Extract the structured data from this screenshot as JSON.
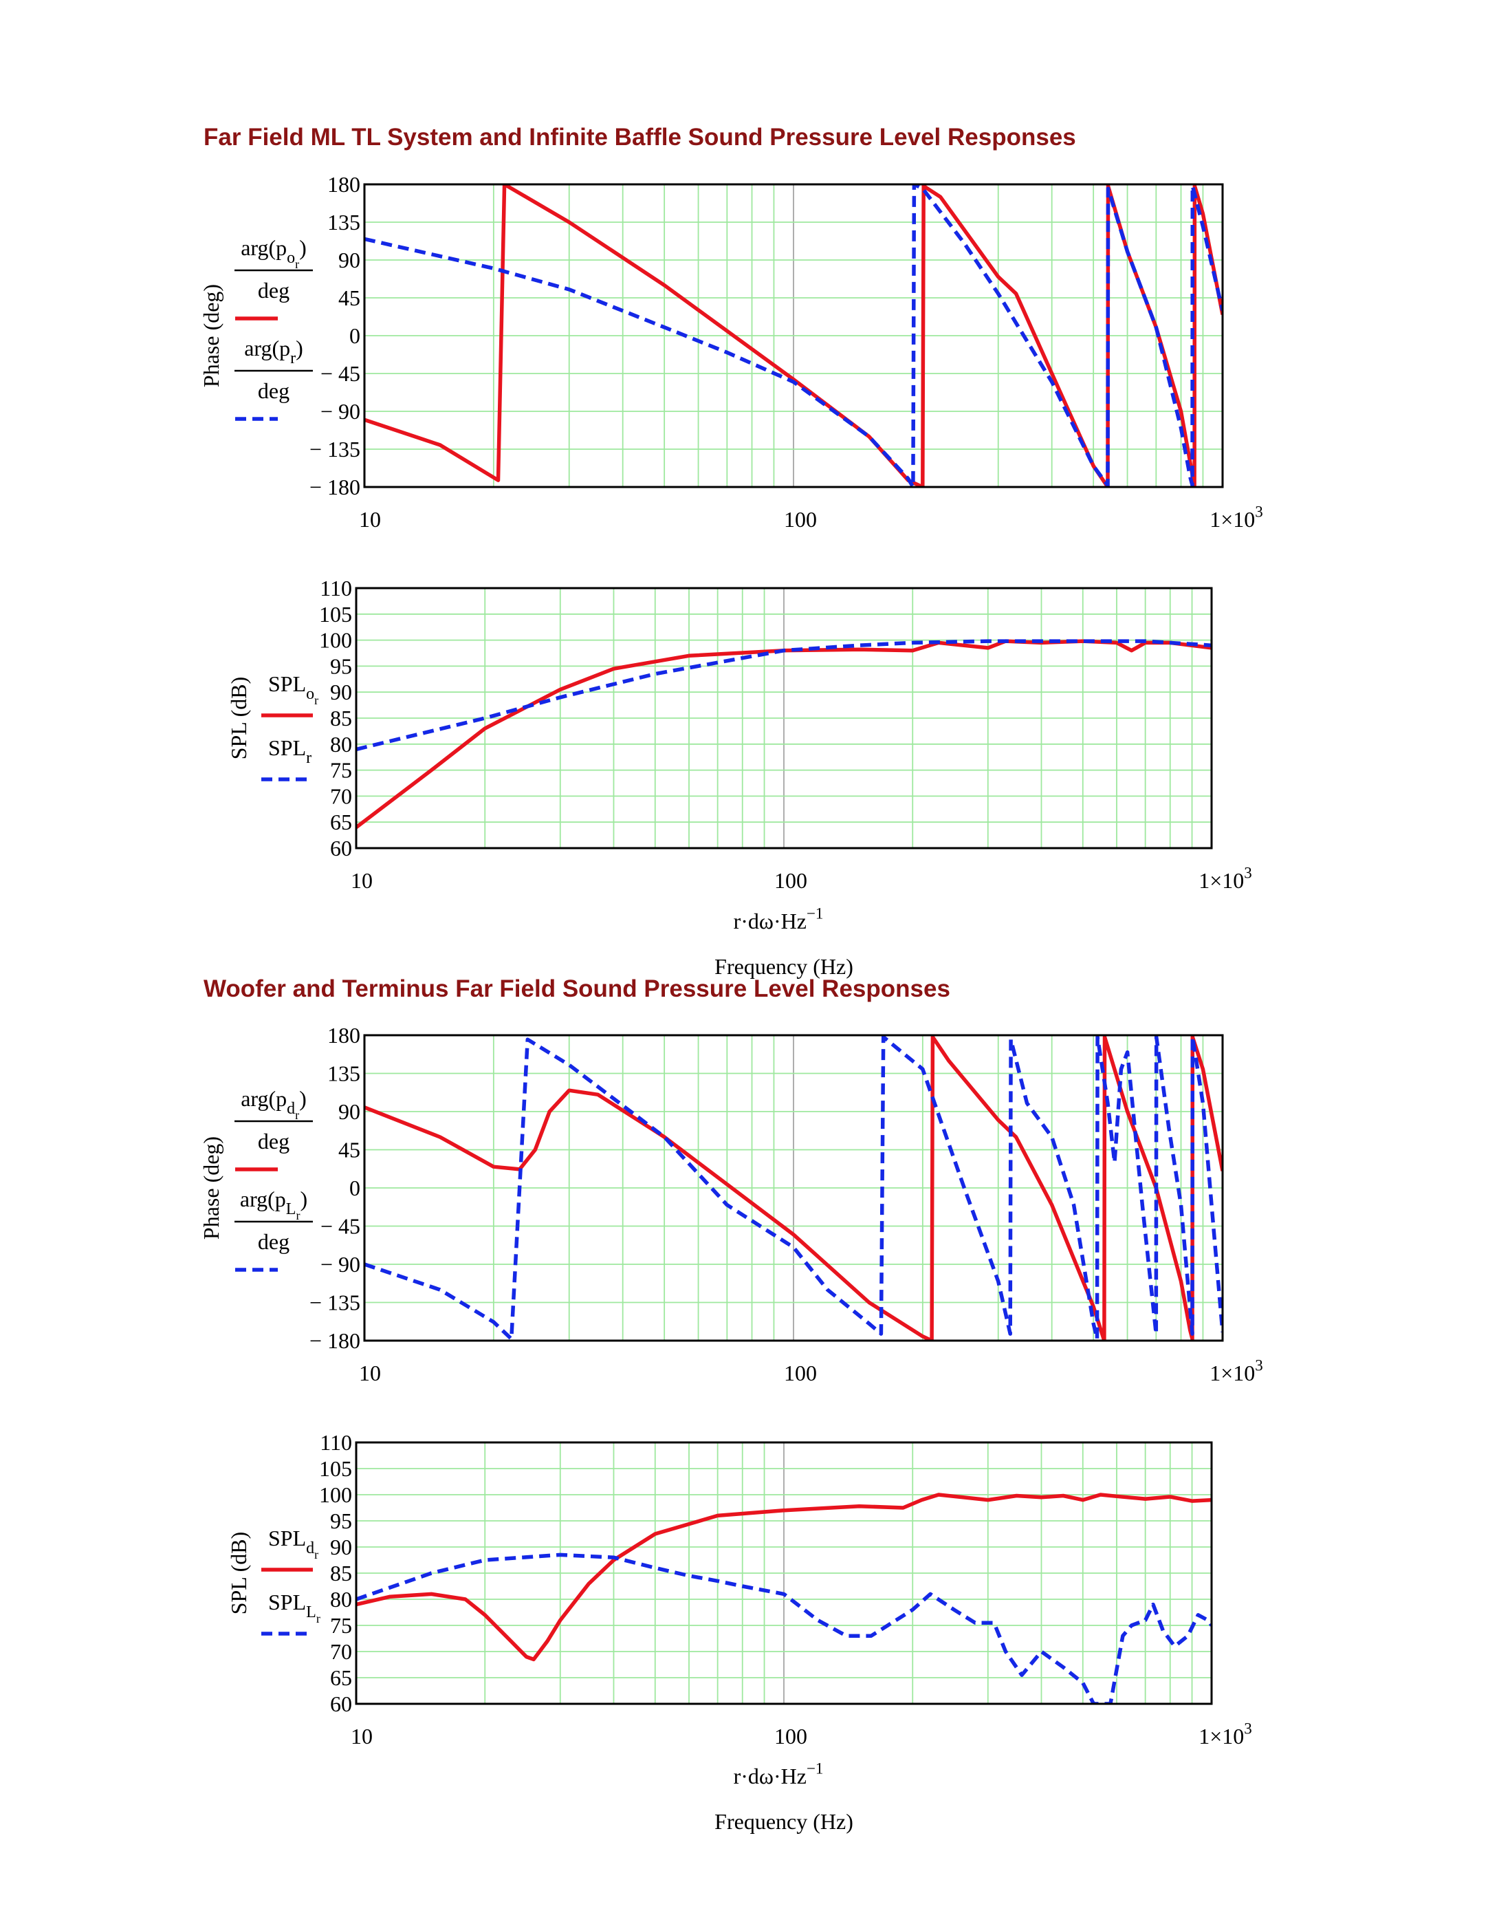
{
  "sections": [
    {
      "title": "Far Field ML TL System and Infinite Baffle Sound Pressure Level Responses"
    },
    {
      "title": "Woofer and Terminus Far Field Sound Pressure Level Responses"
    }
  ],
  "colors": {
    "title": "#8b1414",
    "red_series": "#e8141e",
    "blue_series": "#1428e6",
    "grid": "#9ee89e"
  },
  "chart_data": [
    {
      "type": "line",
      "xscale": "log",
      "xlim": [
        10,
        1000
      ],
      "xticks": [
        "10",
        "100",
        "1×10^3"
      ],
      "ylim": [
        -180,
        180
      ],
      "yticks": [
        "180",
        "135",
        "90",
        "45",
        "0",
        "− 45",
        "− 90",
        "− 135",
        "− 180"
      ],
      "ylabel": "Phase (deg)",
      "xlabel": "",
      "legend": [
        {
          "numerator": "arg(p_o_r)",
          "denominator": "deg",
          "style": "solid"
        },
        {
          "numerator": "arg(p_r)",
          "denominator": "deg",
          "style": "dashed"
        }
      ],
      "series": [
        {
          "color": "red",
          "style": "solid",
          "points": [
            [
              10,
              -100
            ],
            [
              15,
              -130
            ],
            [
              20.5,
              -172
            ],
            [
              21.2,
              180
            ],
            [
              30,
              135
            ],
            [
              50,
              60
            ],
            [
              100,
              -52
            ],
            [
              150,
              -120
            ],
            [
              185,
              -172
            ],
            [
              200,
              -180
            ],
            [
              201,
              178
            ],
            [
              220,
              165
            ],
            [
              300,
              70
            ],
            [
              330,
              50
            ],
            [
              400,
              -45
            ],
            [
              500,
              -155
            ],
            [
              540,
              -180
            ],
            [
              541,
              178
            ],
            [
              600,
              100
            ],
            [
              700,
              10
            ],
            [
              800,
              -90
            ],
            [
              850,
              -165
            ],
            [
              860,
              -178
            ],
            [
              861,
              178
            ],
            [
              900,
              145
            ],
            [
              1000,
              25
            ]
          ]
        },
        {
          "color": "blue",
          "style": "dashed",
          "points": [
            [
              10,
              115
            ],
            [
              20,
              80
            ],
            [
              30,
              55
            ],
            [
              50,
              10
            ],
            [
              70,
              -20
            ],
            [
              100,
              -55
            ],
            [
              150,
              -120
            ],
            [
              185,
              -170
            ],
            [
              190,
              -180
            ],
            [
              191,
              180
            ],
            [
              200,
              175
            ],
            [
              250,
              110
            ],
            [
              300,
              50
            ],
            [
              400,
              -55
            ],
            [
              500,
              -155
            ],
            [
              540,
              -178
            ],
            [
              541,
              175
            ],
            [
              600,
              100
            ],
            [
              700,
              10
            ],
            [
              800,
              -110
            ],
            [
              840,
              -168
            ],
            [
              850,
              -178
            ],
            [
              851,
              178
            ],
            [
              900,
              130
            ],
            [
              1000,
              30
            ]
          ]
        }
      ]
    },
    {
      "type": "line",
      "xscale": "log",
      "xlim": [
        10,
        1000
      ],
      "xticks": [
        "10",
        "100",
        "1×10^3"
      ],
      "ylim": [
        60,
        110
      ],
      "yticks": [
        "110",
        "105",
        "100",
        "95",
        "90",
        "85",
        "80",
        "75",
        "70",
        "65",
        "60"
      ],
      "ylabel": "SPL (dB)",
      "xlabel": "Frequency (Hz)",
      "x_expression": "r·dω·Hz^−1",
      "legend": [
        {
          "label": "SPL_o_r",
          "style": "solid"
        },
        {
          "label": "SPL_r",
          "style": "dashed"
        }
      ],
      "series": [
        {
          "color": "red",
          "style": "solid",
          "points": [
            [
              10,
              64
            ],
            [
              15,
              75
            ],
            [
              20,
              83
            ],
            [
              30,
              90.5
            ],
            [
              40,
              94.5
            ],
            [
              60,
              97
            ],
            [
              100,
              98
            ],
            [
              150,
              98.2
            ],
            [
              200,
              98
            ],
            [
              230,
              99.5
            ],
            [
              300,
              98.5
            ],
            [
              330,
              99.8
            ],
            [
              400,
              99.5
            ],
            [
              500,
              99.8
            ],
            [
              600,
              99.5
            ],
            [
              650,
              98
            ],
            [
              700,
              99.5
            ],
            [
              800,
              99.5
            ],
            [
              1000,
              98.5
            ]
          ]
        },
        {
          "color": "blue",
          "style": "dashed",
          "points": [
            [
              10,
              79
            ],
            [
              20,
              85
            ],
            [
              30,
              89
            ],
            [
              50,
              93.5
            ],
            [
              100,
              98
            ],
            [
              150,
              99
            ],
            [
              200,
              99.5
            ],
            [
              300,
              99.8
            ],
            [
              500,
              99.8
            ],
            [
              700,
              99.8
            ],
            [
              1000,
              99
            ]
          ]
        }
      ]
    },
    {
      "type": "line",
      "xscale": "log",
      "xlim": [
        10,
        1000
      ],
      "xticks": [
        "10",
        "100",
        "1×10^3"
      ],
      "ylim": [
        -180,
        180
      ],
      "yticks": [
        "180",
        "135",
        "90",
        "45",
        "0",
        "− 45",
        "− 90",
        "− 135",
        "− 180"
      ],
      "ylabel": "Phase (deg)",
      "xlabel": "",
      "legend": [
        {
          "numerator": "arg(p_d_r)",
          "denominator": "deg",
          "style": "solid"
        },
        {
          "numerator": "arg(p_L_r)",
          "denominator": "deg",
          "style": "dashed"
        }
      ],
      "series": [
        {
          "color": "red",
          "style": "solid",
          "points": [
            [
              10,
              95
            ],
            [
              15,
              60
            ],
            [
              20,
              25
            ],
            [
              23,
              22
            ],
            [
              25,
              45
            ],
            [
              27,
              90
            ],
            [
              30,
              115
            ],
            [
              35,
              110
            ],
            [
              50,
              60
            ],
            [
              100,
              -55
            ],
            [
              150,
              -135
            ],
            [
              200,
              -175
            ],
            [
              210,
              -180
            ],
            [
              211,
              178
            ],
            [
              230,
              150
            ],
            [
              300,
              80
            ],
            [
              330,
              60
            ],
            [
              400,
              -20
            ],
            [
              500,
              -140
            ],
            [
              530,
              -180
            ],
            [
              531,
              178
            ],
            [
              600,
              90
            ],
            [
              700,
              0
            ],
            [
              800,
              -110
            ],
            [
              840,
              -168
            ],
            [
              850,
              -178
            ],
            [
              851,
              178
            ],
            [
              900,
              140
            ],
            [
              1000,
              20
            ]
          ]
        },
        {
          "color": "blue",
          "style": "dashed",
          "points": [
            [
              10,
              -90
            ],
            [
              15,
              -120
            ],
            [
              20,
              -158
            ],
            [
              22,
              -178
            ],
            [
              24,
              175
            ],
            [
              30,
              145
            ],
            [
              50,
              60
            ],
            [
              70,
              -20
            ],
            [
              100,
              -70
            ],
            [
              120,
              -120
            ],
            [
              150,
              -160
            ],
            [
              160,
              -172
            ],
            [
              162,
              178
            ],
            [
              200,
              140
            ],
            [
              220,
              80
            ],
            [
              250,
              0
            ],
            [
              300,
              -110
            ],
            [
              320,
              -172
            ],
            [
              321,
              175
            ],
            [
              350,
              100
            ],
            [
              400,
              60
            ],
            [
              450,
              -20
            ],
            [
              500,
              -160
            ],
            [
              510,
              -178
            ],
            [
              511,
              178
            ],
            [
              540,
              100
            ],
            [
              560,
              30
            ],
            [
              580,
              140
            ],
            [
              600,
              160
            ],
            [
              650,
              -20
            ],
            [
              700,
              -172
            ],
            [
              701,
              178
            ],
            [
              750,
              70
            ],
            [
              800,
              -20
            ],
            [
              850,
              -172
            ],
            [
              851,
              178
            ],
            [
              900,
              100
            ],
            [
              950,
              -40
            ],
            [
              1000,
              -170
            ]
          ]
        }
      ]
    },
    {
      "type": "line",
      "xscale": "log",
      "xlim": [
        10,
        1000
      ],
      "xticks": [
        "10",
        "100",
        "1×10^3"
      ],
      "ylim": [
        60,
        110
      ],
      "yticks": [
        "110",
        "105",
        "100",
        "95",
        "90",
        "85",
        "80",
        "75",
        "70",
        "65",
        "60"
      ],
      "ylabel": "SPL (dB)",
      "xlabel": "Frequency (Hz)",
      "x_expression": "r·dω·Hz^−1",
      "legend": [
        {
          "label": "SPL_d_r",
          "style": "solid"
        },
        {
          "label": "SPL_L_r",
          "style": "dashed"
        }
      ],
      "series": [
        {
          "color": "red",
          "style": "solid",
          "points": [
            [
              10,
              79
            ],
            [
              12,
              80.5
            ],
            [
              15,
              81
            ],
            [
              18,
              80
            ],
            [
              20,
              77
            ],
            [
              23,
              72
            ],
            [
              25,
              69
            ],
            [
              26,
              68.5
            ],
            [
              28,
              72
            ],
            [
              30,
              76
            ],
            [
              35,
              83
            ],
            [
              40,
              87.5
            ],
            [
              50,
              92.5
            ],
            [
              70,
              96
            ],
            [
              100,
              97
            ],
            [
              150,
              97.8
            ],
            [
              190,
              97.5
            ],
            [
              210,
              99
            ],
            [
              230,
              100
            ],
            [
              300,
              99
            ],
            [
              350,
              99.8
            ],
            [
              400,
              99.5
            ],
            [
              450,
              99.8
            ],
            [
              500,
              99
            ],
            [
              550,
              100
            ],
            [
              600,
              99.7
            ],
            [
              700,
              99.2
            ],
            [
              800,
              99.6
            ],
            [
              900,
              98.8
            ],
            [
              1000,
              99
            ]
          ]
        },
        {
          "color": "blue",
          "style": "dashed",
          "points": [
            [
              10,
              80
            ],
            [
              15,
              85
            ],
            [
              20,
              87.5
            ],
            [
              30,
              88.5
            ],
            [
              40,
              88
            ],
            [
              50,
              86
            ],
            [
              60,
              84.5
            ],
            [
              70,
              83.5
            ],
            [
              80,
              82.5
            ],
            [
              100,
              81
            ],
            [
              120,
              76
            ],
            [
              140,
              73
            ],
            [
              160,
              73
            ],
            [
              200,
              78
            ],
            [
              220,
              81
            ],
            [
              250,
              78
            ],
            [
              280,
              75.5
            ],
            [
              310,
              75.5
            ],
            [
              330,
              70
            ],
            [
              360,
              65.5
            ],
            [
              400,
              70
            ],
            [
              450,
              67
            ],
            [
              500,
              64
            ],
            [
              530,
              60
            ],
            [
              580,
              60
            ],
            [
              620,
              73
            ],
            [
              650,
              75
            ],
            [
              700,
              76
            ],
            [
              730,
              79
            ],
            [
              770,
              74
            ],
            [
              820,
              71
            ],
            [
              880,
              73
            ],
            [
              930,
              77
            ],
            [
              980,
              76
            ],
            [
              1000,
              75
            ]
          ]
        }
      ]
    }
  ]
}
